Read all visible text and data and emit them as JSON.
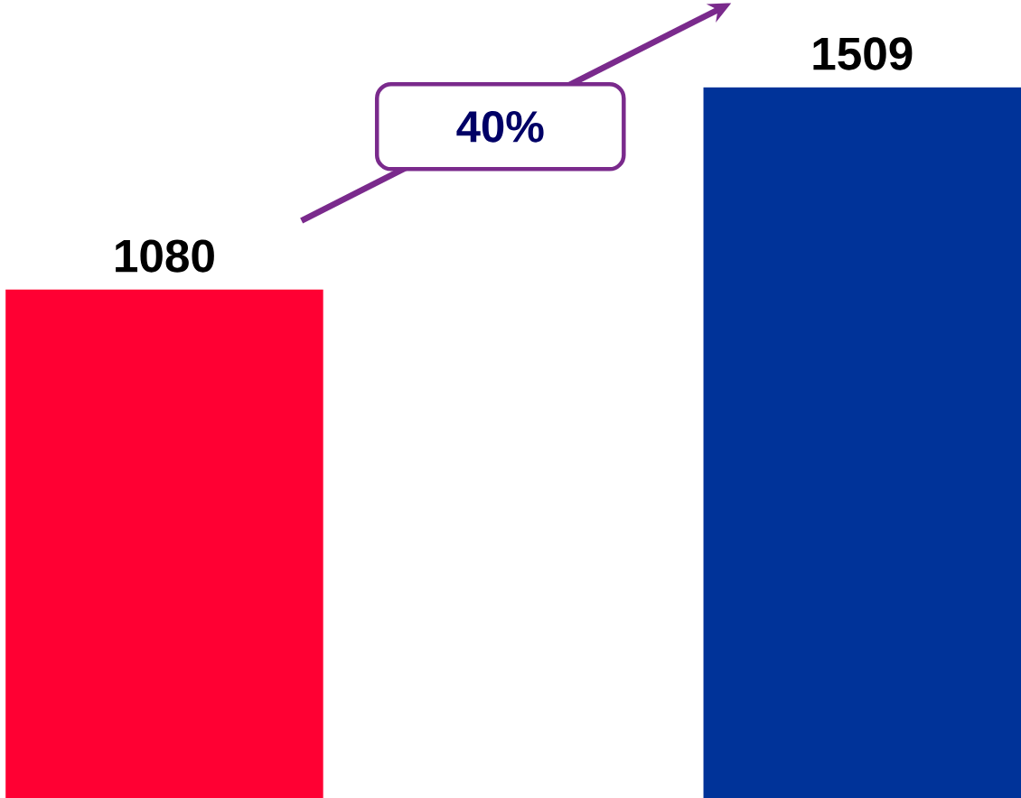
{
  "chart_data": {
    "type": "bar",
    "categories": [
      null,
      null
    ],
    "values": [
      1080,
      1509
    ],
    "colors": [
      "#ff0033",
      "#003399"
    ],
    "data_labels": true,
    "annotations": [
      "40%"
    ]
  }
}
